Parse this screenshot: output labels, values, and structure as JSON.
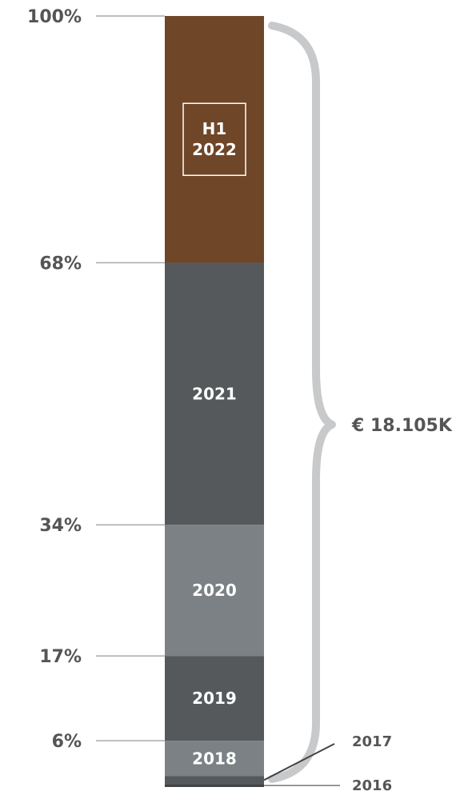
{
  "chart_data": {
    "type": "bar",
    "title": "",
    "stacked": true,
    "orientation": "vertical",
    "ylim": [
      0,
      100
    ],
    "yticks": [
      {
        "value": 100,
        "label": "100%"
      },
      {
        "value": 68,
        "label": "68%"
      },
      {
        "value": 34,
        "label": "34%"
      },
      {
        "value": 17,
        "label": "17%"
      },
      {
        "value": 6,
        "label": "6%"
      }
    ],
    "segments": [
      {
        "label": "2016",
        "start": 0,
        "end": 0.4,
        "color": "#3f4346",
        "outside": true
      },
      {
        "label": "2017",
        "start": 0.4,
        "end": 1.4,
        "color": "#55595c",
        "outside": true
      },
      {
        "label": "2018",
        "start": 1.4,
        "end": 6,
        "color": "#7b8184",
        "outside": false
      },
      {
        "label": "2019",
        "start": 6,
        "end": 17,
        "color": "#55595c",
        "outside": false
      },
      {
        "label": "2020",
        "start": 17,
        "end": 34,
        "color": "#7b8184",
        "outside": false
      },
      {
        "label": "2021",
        "start": 34,
        "end": 68,
        "color": "#55595c",
        "outside": false
      },
      {
        "label": "H1 2022",
        "lines": [
          "H1",
          "2022"
        ],
        "start": 68,
        "end": 100,
        "color": "#6f4628",
        "outside": false,
        "boxed": true
      }
    ],
    "brace_label": "€ 18.105K",
    "colors": {
      "tick_line": "#aaaaaa",
      "brace": "#c7c9ca",
      "text": "#555555"
    }
  }
}
